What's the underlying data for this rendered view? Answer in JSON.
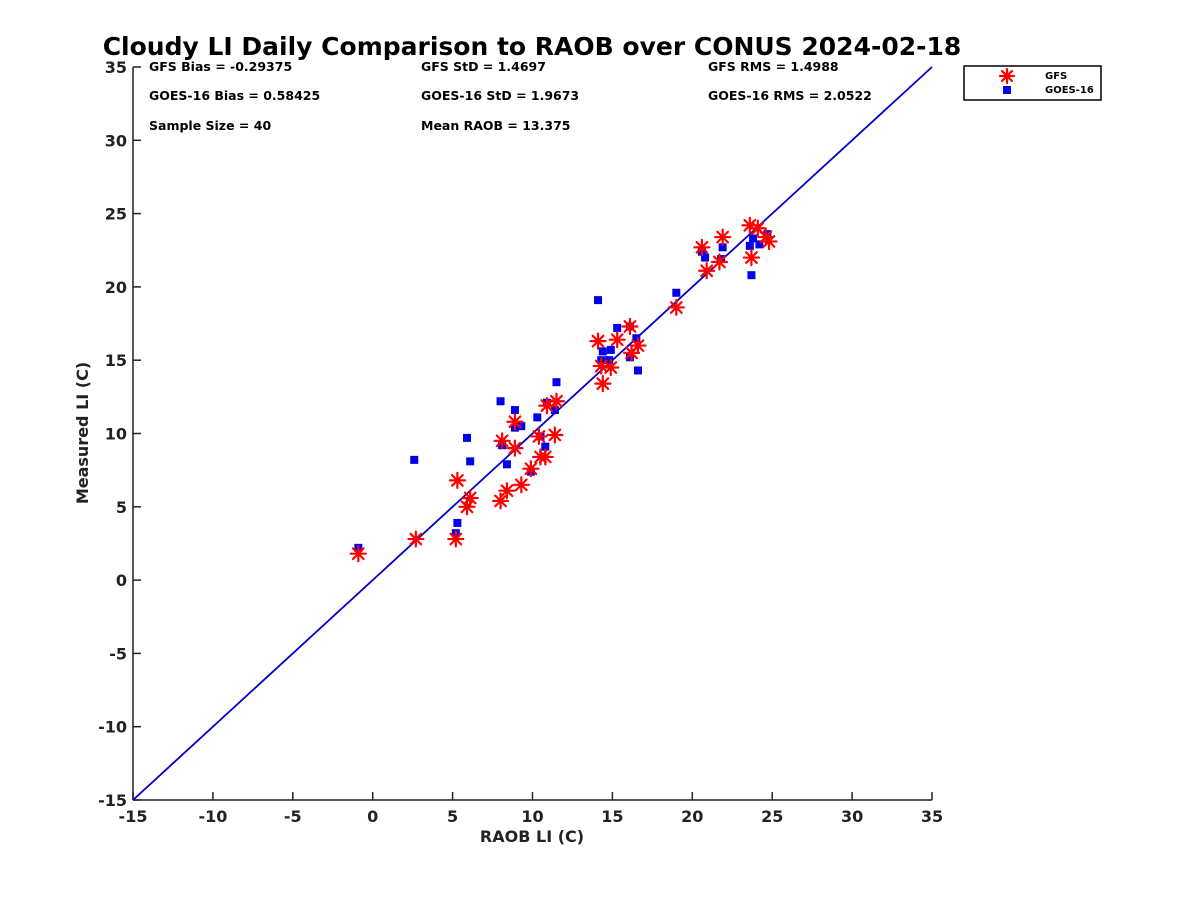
{
  "chart_data": {
    "type": "scatter",
    "title": "Cloudy LI Daily Comparison to RAOB over CONUS 2024-02-18",
    "xlabel": "RAOB LI (C)",
    "ylabel": "Measured LI (C)",
    "xlim": [
      -15,
      35
    ],
    "ylim": [
      -15,
      35
    ],
    "xticks": [
      -15,
      -10,
      -5,
      0,
      5,
      10,
      15,
      20,
      25,
      30,
      35
    ],
    "yticks": [
      -15,
      -10,
      -5,
      0,
      5,
      10,
      15,
      20,
      25,
      30,
      35
    ],
    "grid": false,
    "legend_position": "top-right (outside plot)",
    "reference_line": {
      "type": "1:1",
      "color": "#0000cc"
    },
    "stats": [
      [
        "GFS Bias = -0.29375",
        "GFS StD = 1.4697",
        "GFS RMS = 1.4988"
      ],
      [
        "GOES-16 Bias = 0.58425",
        "GOES-16 StD = 1.9673",
        "GOES-16 RMS = 2.0522"
      ],
      [
        "Sample Size = 40",
        "Mean RAOB = 13.375",
        ""
      ]
    ],
    "series": [
      {
        "name": "GFS",
        "marker": "asterisk",
        "color": "#ff0000",
        "points": [
          [
            -0.9,
            1.8
          ],
          [
            2.7,
            2.8
          ],
          [
            5.2,
            2.8
          ],
          [
            5.3,
            6.8
          ],
          [
            5.9,
            5.0
          ],
          [
            6.1,
            5.6
          ],
          [
            8.0,
            5.4
          ],
          [
            8.1,
            9.5
          ],
          [
            8.4,
            6.1
          ],
          [
            8.9,
            9.0
          ],
          [
            8.9,
            10.8
          ],
          [
            9.3,
            6.5
          ],
          [
            9.9,
            7.6
          ],
          [
            10.4,
            9.8
          ],
          [
            10.5,
            8.4
          ],
          [
            10.8,
            8.4
          ],
          [
            10.9,
            11.9
          ],
          [
            11.4,
            9.9
          ],
          [
            11.5,
            12.2
          ],
          [
            14.1,
            16.3
          ],
          [
            14.3,
            14.6
          ],
          [
            14.4,
            13.4
          ],
          [
            14.9,
            14.5
          ],
          [
            15.3,
            16.4
          ],
          [
            16.1,
            17.3
          ],
          [
            16.2,
            15.5
          ],
          [
            16.6,
            16.0
          ],
          [
            19.0,
            18.6
          ],
          [
            20.6,
            22.7
          ],
          [
            20.9,
            21.1
          ],
          [
            21.7,
            21.7
          ],
          [
            21.9,
            23.4
          ],
          [
            23.6,
            24.2
          ],
          [
            23.7,
            22.0
          ],
          [
            24.1,
            24.0
          ],
          [
            24.6,
            23.4
          ],
          [
            24.8,
            23.1
          ]
        ]
      },
      {
        "name": "GOES-16",
        "marker": "square",
        "color": "#0000ee",
        "points": [
          [
            -0.9,
            2.2
          ],
          [
            2.6,
            8.2
          ],
          [
            5.2,
            3.2
          ],
          [
            5.3,
            3.9
          ],
          [
            5.9,
            9.7
          ],
          [
            6.1,
            8.1
          ],
          [
            8.0,
            12.2
          ],
          [
            8.1,
            9.2
          ],
          [
            8.4,
            7.9
          ],
          [
            8.9,
            11.6
          ],
          [
            8.9,
            10.4
          ],
          [
            9.3,
            10.5
          ],
          [
            9.9,
            7.4
          ],
          [
            10.3,
            11.1
          ],
          [
            10.5,
            9.8
          ],
          [
            10.8,
            9.1
          ],
          [
            10.9,
            12.1
          ],
          [
            11.4,
            11.6
          ],
          [
            11.5,
            13.5
          ],
          [
            14.1,
            19.1
          ],
          [
            14.3,
            15.0
          ],
          [
            14.4,
            15.6
          ],
          [
            14.8,
            15.0
          ],
          [
            14.9,
            15.7
          ],
          [
            15.3,
            17.2
          ],
          [
            16.1,
            15.2
          ],
          [
            16.1,
            17.3
          ],
          [
            16.5,
            16.5
          ],
          [
            16.6,
            14.3
          ],
          [
            19.0,
            19.6
          ],
          [
            20.6,
            22.4
          ],
          [
            20.8,
            22.0
          ],
          [
            21.8,
            21.9
          ],
          [
            21.9,
            22.7
          ],
          [
            23.6,
            22.8
          ],
          [
            23.7,
            20.8
          ],
          [
            23.8,
            23.3
          ],
          [
            24.2,
            22.9
          ],
          [
            24.7,
            23.6
          ]
        ]
      }
    ]
  }
}
